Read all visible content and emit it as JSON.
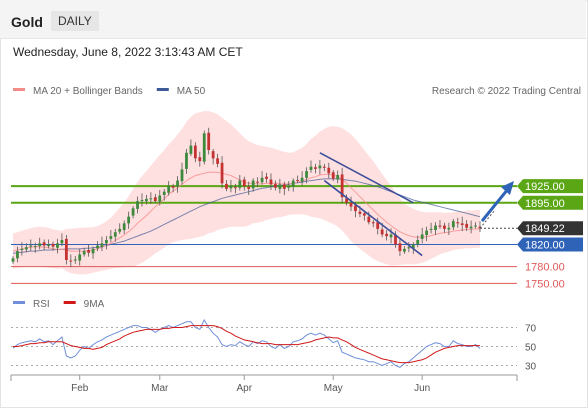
{
  "header": {
    "symbol": "Gold",
    "timeframe": "DAILY"
  },
  "date_line": "Wednesday, June 8, 2022 3:13:43 AM CET",
  "copyright": "Research © 2022 Trading Central",
  "colors": {
    "ma20": "#f58c8c",
    "ma50": "#3d5a96",
    "bollinger_fill": "#ffd6d6",
    "resistance": "#5aa614",
    "support_blue": "#2e63b8",
    "support_red": "#e05a5a",
    "candle_up": "#3d8a3d",
    "candle_down": "#c43232",
    "rsi": "#6f8fd8",
    "rsi_ma": "#d01818",
    "channel": "#3d4f9a",
    "current_price": "#333333"
  },
  "chart_data": [
    {
      "type": "candlestick",
      "title": "",
      "legend": [
        {
          "name": "MA 20 + Bollinger Bands",
          "color": "#f58c8c"
        },
        {
          "name": "MA 50",
          "color": "#3d5a96"
        }
      ],
      "legend_placement": "top-left",
      "x_ticks": [
        "Feb",
        "Mar",
        "Apr",
        "May",
        "Jun"
      ],
      "ylim": [
        1720,
        2080
      ],
      "levels": [
        {
          "label": "1925.00",
          "value": 1925,
          "kind": "resistance"
        },
        {
          "label": "1895.00",
          "value": 1895,
          "kind": "resistance"
        },
        {
          "label": "1849.22",
          "value": 1849.22,
          "kind": "current"
        },
        {
          "label": "1820.00",
          "value": 1820,
          "kind": "support_blue"
        },
        {
          "label": "1780.00",
          "value": 1780,
          "kind": "support_red"
        },
        {
          "label": "1750.00",
          "value": 1750,
          "kind": "support_red"
        }
      ],
      "close": [
        1795,
        1808,
        1812,
        1815,
        1818,
        1817,
        1822,
        1818,
        1820,
        1816,
        1822,
        1828,
        1792,
        1790,
        1793,
        1802,
        1808,
        1805,
        1812,
        1818,
        1822,
        1828,
        1835,
        1842,
        1848,
        1858,
        1870,
        1885,
        1898,
        1900,
        1902,
        1903,
        1898,
        1908,
        1915,
        1925,
        1922,
        1935,
        1955,
        1985,
        1998,
        1975,
        1970,
        2020,
        1990,
        1975,
        1965,
        1930,
        1920,
        1925,
        1922,
        1935,
        1925,
        1920,
        1935,
        1932,
        1940,
        1938,
        1928,
        1922,
        1928,
        1920,
        1925,
        1935,
        1935,
        1940,
        1952,
        1960,
        1956,
        1962,
        1958,
        1948,
        1938,
        1945,
        1905,
        1895,
        1888,
        1880,
        1875,
        1872,
        1860,
        1858,
        1848,
        1838,
        1835,
        1838,
        1820,
        1808,
        1812,
        1815,
        1820,
        1828,
        1838,
        1845,
        1848,
        1854,
        1852,
        1848,
        1850,
        1862,
        1858,
        1855,
        1850,
        1852,
        1854,
        1849.22
      ],
      "ma20": [
        1808,
        1810,
        1812,
        1814,
        1815,
        1816,
        1816,
        1815,
        1814,
        1812,
        1811,
        1811,
        1810,
        1808,
        1808,
        1808,
        1808,
        1809,
        1810,
        1812,
        1815,
        1818,
        1822,
        1827,
        1832,
        1837,
        1843,
        1850,
        1858,
        1865,
        1872,
        1880,
        1888,
        1895,
        1902,
        1910,
        1916,
        1922,
        1928,
        1935,
        1940,
        1944,
        1946,
        1948,
        1950,
        1950,
        1950,
        1948,
        1946,
        1944,
        1940,
        1936,
        1932,
        1930,
        1930,
        1929,
        1929,
        1930,
        1930,
        1930,
        1929,
        1929,
        1929,
        1930,
        1932,
        1934,
        1937,
        1940,
        1942,
        1945,
        1946,
        1946,
        1945,
        1942,
        1937,
        1930,
        1922,
        1914,
        1906,
        1898,
        1890,
        1882,
        1874,
        1867,
        1860,
        1854,
        1848,
        1843,
        1839,
        1836,
        1834,
        1833,
        1833,
        1834,
        1836,
        1838,
        1840,
        1841,
        1842,
        1844,
        1845,
        1846,
        1847,
        1847,
        1848,
        1848
      ],
      "ma50": [
        1804,
        1805,
        1806,
        1807,
        1808,
        1808,
        1809,
        1810,
        1810,
        1810,
        1811,
        1811,
        1812,
        1812,
        1812,
        1812,
        1813,
        1813,
        1814,
        1815,
        1816,
        1818,
        1820,
        1822,
        1824,
        1826,
        1829,
        1832,
        1835,
        1838,
        1841,
        1844,
        1848,
        1852,
        1856,
        1860,
        1864,
        1868,
        1872,
        1876,
        1880,
        1884,
        1888,
        1891,
        1894,
        1897,
        1900,
        1903,
        1905,
        1907,
        1909,
        1911,
        1913,
        1915,
        1917,
        1919,
        1921,
        1922,
        1924,
        1925,
        1926,
        1927,
        1928,
        1930,
        1931,
        1932,
        1934,
        1935,
        1936,
        1937,
        1938,
        1938,
        1938,
        1938,
        1937,
        1936,
        1935,
        1934,
        1932,
        1930,
        1928,
        1926,
        1924,
        1921,
        1918,
        1915,
        1912,
        1909,
        1906,
        1903,
        1900,
        1898,
        1896,
        1894,
        1892,
        1890,
        1888,
        1886,
        1884,
        1882,
        1880,
        1878,
        1876,
        1874,
        1872,
        1870
      ],
      "bb_width": [
        32,
        32,
        33,
        33,
        34,
        35,
        36,
        36,
        36,
        35,
        35,
        34,
        38,
        40,
        41,
        42,
        42,
        42,
        41,
        41,
        42,
        44,
        46,
        50,
        54,
        58,
        64,
        70,
        75,
        78,
        80,
        82,
        84,
        86,
        88,
        90,
        92,
        96,
        100,
        106,
        110,
        112,
        112,
        112,
        110,
        108,
        104,
        100,
        96,
        92,
        88,
        84,
        80,
        76,
        72,
        70,
        68,
        66,
        64,
        62,
        60,
        58,
        56,
        56,
        58,
        60,
        64,
        70,
        74,
        78,
        82,
        86,
        88,
        90,
        92,
        94,
        96,
        96,
        94,
        92,
        90,
        88,
        84,
        80,
        76,
        72,
        66,
        60,
        55,
        52,
        50,
        48,
        46,
        44,
        42,
        40,
        38,
        36,
        35,
        34,
        34,
        34,
        34,
        34,
        34,
        34
      ]
    },
    {
      "type": "line",
      "title": "",
      "legend": [
        {
          "name": "RSI",
          "color": "#6f8fd8"
        },
        {
          "name": "9MA",
          "color": "#d01818"
        }
      ],
      "y_ticks": [
        "70",
        "50",
        "30"
      ],
      "ylim": [
        20,
        80
      ],
      "rsi": [
        48,
        52,
        54,
        55,
        56,
        55,
        58,
        55,
        56,
        52,
        56,
        60,
        40,
        38,
        40,
        46,
        50,
        48,
        52,
        55,
        57,
        60,
        62,
        64,
        66,
        68,
        70,
        72,
        72,
        70,
        70,
        68,
        65,
        68,
        70,
        72,
        70,
        72,
        74,
        76,
        76,
        70,
        68,
        78,
        70,
        64,
        60,
        52,
        50,
        52,
        51,
        55,
        52,
        50,
        55,
        53,
        56,
        55,
        50,
        48,
        52,
        48,
        50,
        55,
        56,
        58,
        62,
        64,
        62,
        64,
        62,
        58,
        54,
        56,
        44,
        42,
        40,
        38,
        37,
        36,
        34,
        34,
        32,
        30,
        32,
        34,
        30,
        28,
        32,
        34,
        38,
        42,
        46,
        50,
        52,
        54,
        53,
        50,
        50,
        56,
        53,
        52,
        50,
        50,
        52,
        48
      ],
      "ma9": [
        50,
        50,
        51,
        52,
        53,
        53,
        54,
        54,
        55,
        55,
        55,
        55,
        53,
        51,
        50,
        49,
        48,
        48,
        47,
        48,
        49,
        52,
        54,
        56,
        58,
        61,
        63,
        65,
        66,
        67,
        68,
        68,
        68,
        68,
        69,
        69,
        70,
        70,
        70,
        71,
        72,
        72,
        72,
        72,
        72,
        72,
        71,
        69,
        66,
        64,
        61,
        59,
        57,
        56,
        55,
        54,
        53,
        53,
        53,
        52,
        52,
        52,
        52,
        52,
        52,
        53,
        54,
        55,
        57,
        58,
        59,
        60,
        59,
        59,
        57,
        55,
        52,
        49,
        47,
        45,
        43,
        41,
        39,
        37,
        36,
        35,
        34,
        33,
        33,
        33,
        34,
        35,
        36,
        38,
        41,
        44,
        46,
        48,
        49,
        50,
        51,
        51,
        51,
        51,
        51,
        51
      ]
    }
  ]
}
